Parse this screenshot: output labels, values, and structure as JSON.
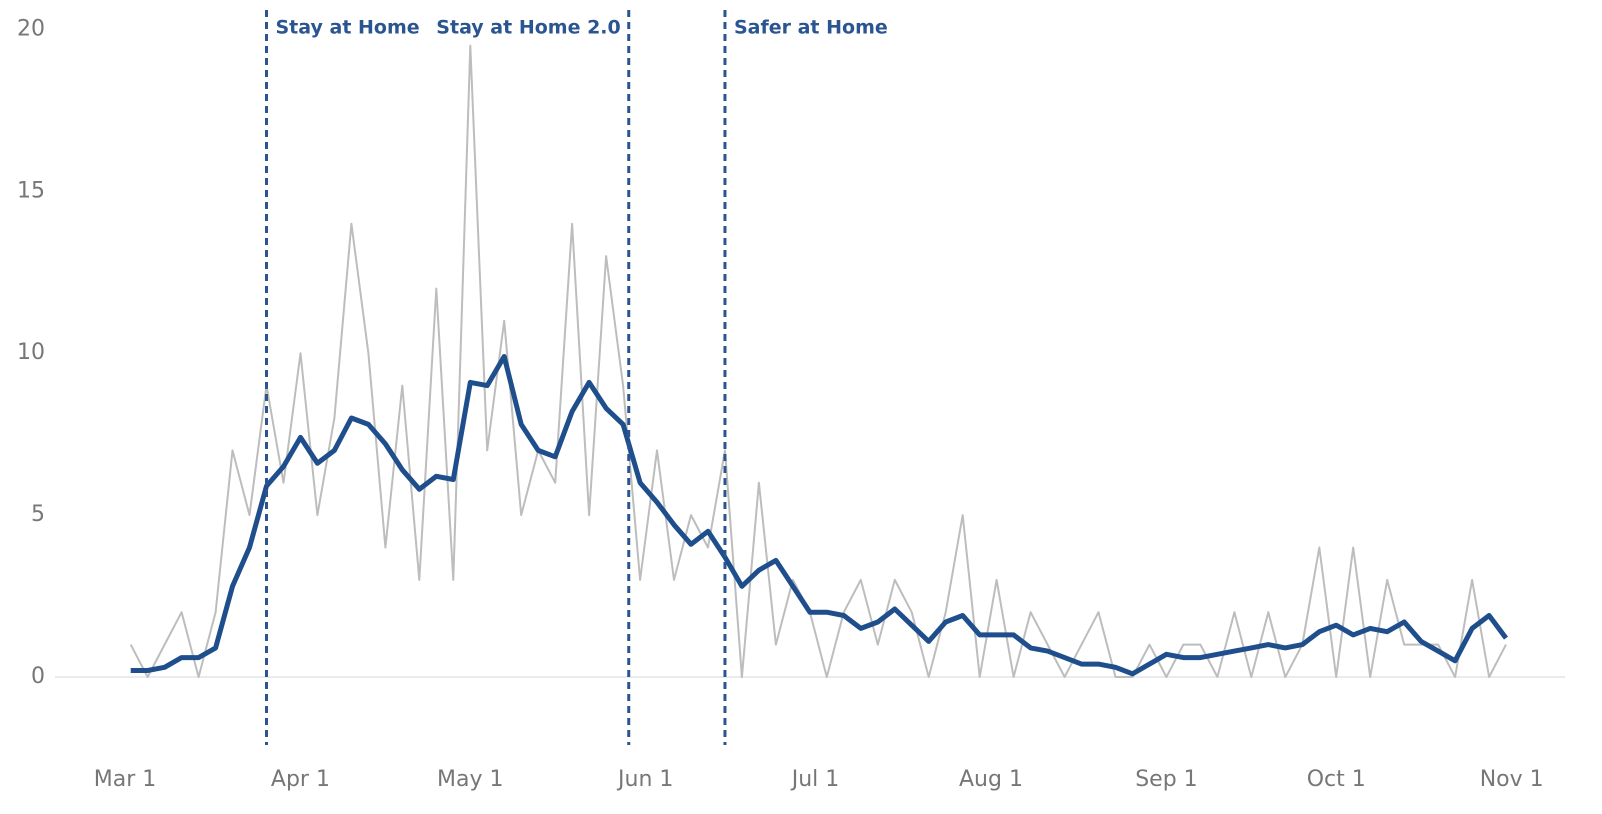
{
  "chart_data": {
    "type": "line",
    "x": [
      "Mar 2",
      "Mar 5",
      "Mar 8",
      "Mar 11",
      "Mar 14",
      "Mar 17",
      "Mar 20",
      "Mar 23",
      "Mar 26",
      "Mar 29",
      "Apr 1",
      "Apr 4",
      "Apr 7",
      "Apr 10",
      "Apr 13",
      "Apr 16",
      "Apr 19",
      "Apr 22",
      "Apr 25",
      "Apr 28",
      "May 1",
      "May 4",
      "May 7",
      "May 10",
      "May 13",
      "May 16",
      "May 19",
      "May 22",
      "May 25",
      "May 28",
      "May 31",
      "Jun 3",
      "Jun 6",
      "Jun 9",
      "Jun 12",
      "Jun 15",
      "Jun 18",
      "Jun 21",
      "Jun 24",
      "Jun 27",
      "Jun 30",
      "Jul 3",
      "Jul 6",
      "Jul 9",
      "Jul 12",
      "Jul 15",
      "Jul 18",
      "Jul 21",
      "Jul 24",
      "Jul 27",
      "Jul 30",
      "Aug 2",
      "Aug 5",
      "Aug 8",
      "Aug 11",
      "Aug 14",
      "Aug 17",
      "Aug 20",
      "Aug 23",
      "Aug 26",
      "Aug 29",
      "Sep 1",
      "Sep 4",
      "Sep 7",
      "Sep 10",
      "Sep 13",
      "Sep 16",
      "Sep 19",
      "Sep 22",
      "Sep 25",
      "Sep 28",
      "Oct 1",
      "Oct 4",
      "Oct 7",
      "Oct 10",
      "Oct 13",
      "Oct 16",
      "Oct 19",
      "Oct 22",
      "Oct 25",
      "Oct 28",
      "Oct 31"
    ],
    "series": [
      {
        "color": "#bdbdbd",
        "width": 2,
        "values": [
          1,
          0,
          1,
          2,
          0,
          2,
          7,
          5,
          9,
          6,
          10,
          5,
          8,
          14,
          10,
          4,
          9,
          3,
          12,
          3,
          19.5,
          7,
          11,
          5,
          7,
          6,
          14,
          5,
          13,
          9,
          3,
          7,
          3,
          5,
          4,
          7,
          0,
          6,
          1,
          3,
          2,
          0,
          2,
          3,
          1,
          3,
          2,
          0,
          2,
          5,
          0,
          3,
          0,
          2,
          1,
          0,
          1,
          2,
          0,
          0,
          1,
          0,
          1,
          1,
          0,
          2,
          0,
          2,
          0,
          1,
          4,
          0,
          4,
          0,
          3,
          1,
          1,
          1,
          0,
          3,
          0,
          1
        ]
      },
      {
        "color": "#1f4e8c",
        "width": 5,
        "values": [
          0.2,
          0.2,
          0.3,
          0.6,
          0.6,
          0.9,
          2.8,
          4.0,
          5.9,
          6.5,
          7.4,
          6.6,
          7.0,
          8.0,
          7.8,
          7.2,
          6.4,
          5.8,
          6.2,
          6.1,
          9.1,
          9.0,
          9.9,
          7.8,
          7.0,
          6.8,
          8.2,
          9.1,
          8.3,
          7.8,
          6.0,
          5.4,
          4.7,
          4.1,
          4.5,
          3.7,
          2.8,
          3.3,
          3.6,
          2.8,
          2.0,
          2.0,
          1.9,
          1.5,
          1.7,
          2.1,
          1.6,
          1.1,
          1.7,
          1.9,
          1.3,
          1.3,
          1.3,
          0.9,
          0.8,
          0.6,
          0.4,
          0.4,
          0.3,
          0.1,
          0.4,
          0.7,
          0.6,
          0.6,
          0.7,
          0.8,
          0.9,
          1.0,
          0.9,
          1.0,
          1.4,
          1.6,
          1.3,
          1.5,
          1.4,
          1.7,
          1.1,
          0.8,
          0.5,
          1.5,
          1.9,
          1.2
        ]
      }
    ],
    "xticks": [
      "Mar 1",
      "Apr 1",
      "May 1",
      "Jun 1",
      "Jul 1",
      "Aug 1",
      "Sep 1",
      "Oct 1",
      "Nov 1"
    ],
    "ylim": [
      -2.1,
      20.6
    ],
    "yticks": [
      0,
      5,
      10,
      15,
      20
    ],
    "annotations": [
      {
        "x": "Mar 26",
        "label": "Stay at Home",
        "align": "left"
      },
      {
        "x": "May 29",
        "label": "Stay at Home 2.0",
        "align": "right"
      },
      {
        "x": "Jun 15",
        "label": "Safer at Home",
        "align": "left"
      }
    ],
    "annotation_color": "#2b5591"
  }
}
